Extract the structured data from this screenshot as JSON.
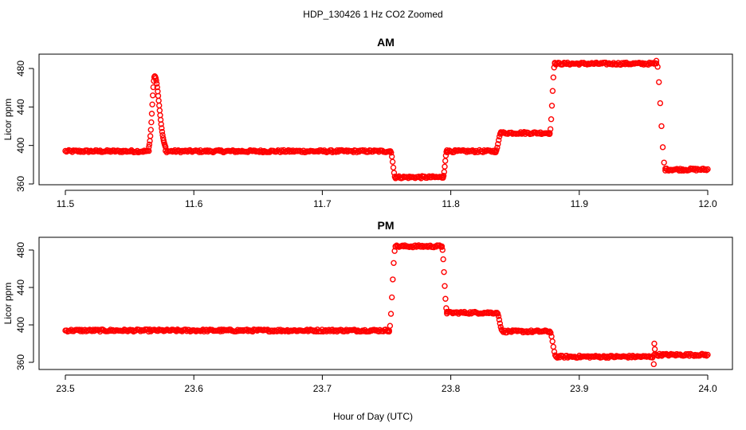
{
  "title": "HDP_130426  1 Hz CO2 Zoomed",
  "xlabel": "Hour of Day (UTC)",
  "colors": {
    "points": "#ff0000",
    "axes": "#000000",
    "background": "#ffffff"
  },
  "chart_data": [
    {
      "type": "scatter",
      "title": "AM",
      "xlabel": "Hour of Day (UTC)",
      "ylabel": "Licor ppm",
      "xlim": [
        11.5,
        12.0
      ],
      "ylim": [
        360,
        496
      ],
      "xticks": [
        11.5,
        11.6,
        11.7,
        11.8,
        11.9,
        12.0
      ],
      "xtick_labels": [
        "11.5",
        "11.6",
        "11.7",
        "11.8",
        "11.9",
        "12.0"
      ],
      "yticks": [
        360,
        400,
        440,
        480
      ],
      "ytick_labels": [
        "360",
        "400",
        "440",
        "480"
      ],
      "marker": "open-circle",
      "grid": false,
      "segments": [
        {
          "x_start": 11.5,
          "x_end": 11.565,
          "y": 394
        },
        {
          "type": "peak",
          "x_start": 11.565,
          "x_end": 11.578,
          "x_peak": 11.5695,
          "y_base": 394,
          "y_peak": 472
        },
        {
          "x_start": 11.578,
          "x_end": 11.753,
          "y": 394
        },
        {
          "type": "step",
          "x_start": 11.753,
          "x_end": 11.757,
          "y_from": 394,
          "y_to": 366
        },
        {
          "x_start": 11.757,
          "x_end": 11.794,
          "y": 367
        },
        {
          "type": "step",
          "x_start": 11.794,
          "x_end": 11.797,
          "y_from": 367,
          "y_to": 395
        },
        {
          "x_start": 11.797,
          "x_end": 11.835,
          "y": 394
        },
        {
          "type": "step",
          "x_start": 11.835,
          "x_end": 11.839,
          "y_from": 394,
          "y_to": 413
        },
        {
          "x_start": 11.839,
          "x_end": 11.877,
          "y": 413
        },
        {
          "type": "step",
          "x_start": 11.877,
          "x_end": 11.881,
          "y_from": 413,
          "y_to": 485
        },
        {
          "x_start": 11.881,
          "x_end": 11.96,
          "y": 485
        },
        {
          "type": "step",
          "x_start": 11.96,
          "x_end": 11.967,
          "y_from": 488,
          "y_to": 376
        },
        {
          "x_start": 11.967,
          "x_end": 12.0,
          "y": 375
        }
      ]
    },
    {
      "type": "scatter",
      "title": "PM",
      "xlabel": "Hour of Day (UTC)",
      "ylabel": "Licor ppm",
      "xlim": [
        23.5,
        24.0
      ],
      "ylim": [
        352,
        490
      ],
      "xticks": [
        23.5,
        23.6,
        23.7,
        23.8,
        23.9,
        24.0
      ],
      "xtick_labels": [
        "23.5",
        "23.6",
        "23.7",
        "23.8",
        "23.9",
        "24.0"
      ],
      "yticks": [
        360,
        400,
        440,
        480
      ],
      "ytick_labels": [
        "360",
        "400",
        "440",
        "480"
      ],
      "marker": "open-circle",
      "grid": false,
      "segments": [
        {
          "x_start": 23.5,
          "x_end": 23.752,
          "y": 394
        },
        {
          "type": "step",
          "x_start": 23.752,
          "x_end": 23.757,
          "y_from": 394,
          "y_to": 484
        },
        {
          "x_start": 23.757,
          "x_end": 23.793,
          "y": 484
        },
        {
          "type": "step",
          "x_start": 23.793,
          "x_end": 23.797,
          "y_from": 484,
          "y_to": 414
        },
        {
          "x_start": 23.797,
          "x_end": 23.836,
          "y": 413
        },
        {
          "type": "step",
          "x_start": 23.836,
          "x_end": 23.84,
          "y_from": 413,
          "y_to": 394
        },
        {
          "x_start": 23.84,
          "x_end": 23.877,
          "y": 393
        },
        {
          "type": "step",
          "x_start": 23.877,
          "x_end": 23.882,
          "y_from": 393,
          "y_to": 366
        },
        {
          "x_start": 23.882,
          "x_end": 23.957,
          "y": 366
        },
        {
          "type": "spike",
          "x": 23.958,
          "values": [
            358,
            380,
            374
          ]
        },
        {
          "x_start": 23.958,
          "x_end": 24.0,
          "y": 368
        }
      ]
    }
  ]
}
